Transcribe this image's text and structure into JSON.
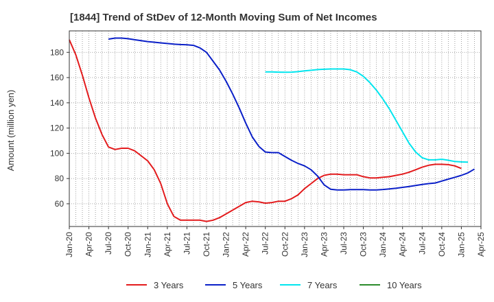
{
  "chart_data": {
    "type": "line",
    "title": "[1844]  Trend of StDev of 12-Month Moving Sum of Net Incomes",
    "xlabel": "",
    "ylabel": "Amount (million yen)",
    "ylim": [
      42,
      197
    ],
    "yticks": [
      60,
      80,
      100,
      120,
      140,
      160,
      180
    ],
    "xlim": [
      "2020-01",
      "2025-04"
    ],
    "xticks": [
      "Jan-20",
      "Apr-20",
      "Jul-20",
      "Oct-20",
      "Jan-21",
      "Apr-21",
      "Jul-21",
      "Oct-21",
      "Jan-22",
      "Apr-22",
      "Jul-22",
      "Oct-22",
      "Jan-23",
      "Apr-23",
      "Jul-23",
      "Oct-23",
      "Jan-24",
      "Apr-24",
      "Jul-24",
      "Oct-24",
      "Jan-25",
      "Apr-25"
    ],
    "grid": true,
    "legend_position": "bottom",
    "series": [
      {
        "name": "3 Years",
        "color": "#e31a1c",
        "points": [
          [
            "2020-01",
            190
          ],
          [
            "2020-02",
            178
          ],
          [
            "2020-03",
            162
          ],
          [
            "2020-04",
            144
          ],
          [
            "2020-05",
            128
          ],
          [
            "2020-06",
            115
          ],
          [
            "2020-07",
            105
          ],
          [
            "2020-08",
            103
          ],
          [
            "2020-09",
            104
          ],
          [
            "2020-10",
            104
          ],
          [
            "2020-11",
            102
          ],
          [
            "2020-12",
            98
          ],
          [
            "2021-01",
            94
          ],
          [
            "2021-02",
            87
          ],
          [
            "2021-03",
            76
          ],
          [
            "2021-04",
            60
          ],
          [
            "2021-05",
            50
          ],
          [
            "2021-06",
            47
          ],
          [
            "2021-07",
            47
          ],
          [
            "2021-08",
            47
          ],
          [
            "2021-09",
            47
          ],
          [
            "2021-10",
            46
          ],
          [
            "2021-11",
            47
          ],
          [
            "2021-12",
            49
          ],
          [
            "2022-01",
            52
          ],
          [
            "2022-02",
            55
          ],
          [
            "2022-03",
            58
          ],
          [
            "2022-04",
            61
          ],
          [
            "2022-05",
            62
          ],
          [
            "2022-06",
            61.5
          ],
          [
            "2022-07",
            60.5
          ],
          [
            "2022-08",
            61
          ],
          [
            "2022-09",
            62
          ],
          [
            "2022-10",
            62
          ],
          [
            "2022-11",
            64
          ],
          [
            "2022-12",
            67
          ],
          [
            "2023-01",
            72
          ],
          [
            "2023-02",
            76
          ],
          [
            "2023-03",
            80
          ],
          [
            "2023-04",
            82.5
          ],
          [
            "2023-05",
            83.5
          ],
          [
            "2023-06",
            83.5
          ],
          [
            "2023-07",
            83
          ],
          [
            "2023-08",
            83
          ],
          [
            "2023-09",
            83
          ],
          [
            "2023-10",
            81.5
          ],
          [
            "2023-11",
            80.5
          ],
          [
            "2023-12",
            80.5
          ],
          [
            "2024-01",
            81
          ],
          [
            "2024-02",
            81.5
          ],
          [
            "2024-03",
            82.5
          ],
          [
            "2024-04",
            83.5
          ],
          [
            "2024-05",
            85
          ],
          [
            "2024-06",
            87
          ],
          [
            "2024-07",
            89
          ],
          [
            "2024-08",
            90.5
          ],
          [
            "2024-09",
            91.3
          ],
          [
            "2024-10",
            91.3
          ],
          [
            "2024-11",
            91
          ],
          [
            "2024-12",
            90
          ],
          [
            "2025-01",
            88
          ]
        ]
      },
      {
        "name": "5 Years",
        "color": "#0a1fc8",
        "points": [
          [
            "2020-07",
            190.5
          ],
          [
            "2020-08",
            191.3
          ],
          [
            "2020-09",
            191.3
          ],
          [
            "2020-10",
            190.8
          ],
          [
            "2020-11",
            190
          ],
          [
            "2020-12",
            189.3
          ],
          [
            "2021-01",
            188.5
          ],
          [
            "2021-02",
            188
          ],
          [
            "2021-03",
            187.5
          ],
          [
            "2021-04",
            187
          ],
          [
            "2021-05",
            186.5
          ],
          [
            "2021-06",
            186.2
          ],
          [
            "2021-07",
            186
          ],
          [
            "2021-08",
            185.5
          ],
          [
            "2021-09",
            183.5
          ],
          [
            "2021-10",
            180
          ],
          [
            "2021-11",
            173
          ],
          [
            "2021-12",
            166
          ],
          [
            "2022-01",
            157
          ],
          [
            "2022-02",
            147
          ],
          [
            "2022-03",
            136
          ],
          [
            "2022-04",
            124
          ],
          [
            "2022-05",
            113
          ],
          [
            "2022-06",
            105.5
          ],
          [
            "2022-07",
            101
          ],
          [
            "2022-08",
            100.5
          ],
          [
            "2022-09",
            100.5
          ],
          [
            "2022-10",
            97.5
          ],
          [
            "2022-11",
            94.5
          ],
          [
            "2022-12",
            92
          ],
          [
            "2023-01",
            90
          ],
          [
            "2023-02",
            87
          ],
          [
            "2023-03",
            82
          ],
          [
            "2023-04",
            75
          ],
          [
            "2023-05",
            71.5
          ],
          [
            "2023-06",
            71
          ],
          [
            "2023-07",
            71
          ],
          [
            "2023-08",
            71.2
          ],
          [
            "2023-09",
            71.2
          ],
          [
            "2023-10",
            71.2
          ],
          [
            "2023-11",
            71
          ],
          [
            "2023-12",
            71
          ],
          [
            "2024-01",
            71.3
          ],
          [
            "2024-02",
            71.8
          ],
          [
            "2024-03",
            72.3
          ],
          [
            "2024-04",
            73
          ],
          [
            "2024-05",
            73.7
          ],
          [
            "2024-06",
            74.5
          ],
          [
            "2024-07",
            75.3
          ],
          [
            "2024-08",
            76
          ],
          [
            "2024-09",
            76.5
          ],
          [
            "2024-10",
            78
          ],
          [
            "2024-11",
            79.5
          ],
          [
            "2024-12",
            81
          ],
          [
            "2025-01",
            82.5
          ],
          [
            "2025-02",
            84.5
          ],
          [
            "2025-03",
            87.5
          ]
        ]
      },
      {
        "name": "7 Years",
        "color": "#00e5ee",
        "points": [
          [
            "2022-07",
            164.5
          ],
          [
            "2022-08",
            164.5
          ],
          [
            "2022-09",
            164.3
          ],
          [
            "2022-10",
            164.2
          ],
          [
            "2022-11",
            164.3
          ],
          [
            "2022-12",
            164.7
          ],
          [
            "2023-01",
            165.3
          ],
          [
            "2023-02",
            165.8
          ],
          [
            "2023-03",
            166.3
          ],
          [
            "2023-04",
            166.6
          ],
          [
            "2023-05",
            166.8
          ],
          [
            "2023-06",
            166.8
          ],
          [
            "2023-07",
            166.8
          ],
          [
            "2023-08",
            166.2
          ],
          [
            "2023-09",
            164.5
          ],
          [
            "2023-10",
            161
          ],
          [
            "2023-11",
            156
          ],
          [
            "2023-12",
            150
          ],
          [
            "2024-01",
            143
          ],
          [
            "2024-02",
            135
          ],
          [
            "2024-03",
            126
          ],
          [
            "2024-04",
            117
          ],
          [
            "2024-05",
            108
          ],
          [
            "2024-06",
            101
          ],
          [
            "2024-07",
            96.5
          ],
          [
            "2024-08",
            94.8
          ],
          [
            "2024-09",
            94.8
          ],
          [
            "2024-10",
            95.3
          ],
          [
            "2024-11",
            94.5
          ],
          [
            "2024-12",
            93.5
          ],
          [
            "2025-01",
            93.2
          ],
          [
            "2025-02",
            93
          ]
        ]
      },
      {
        "name": "10 Years",
        "color": "#2a8a2a",
        "points": []
      }
    ]
  }
}
